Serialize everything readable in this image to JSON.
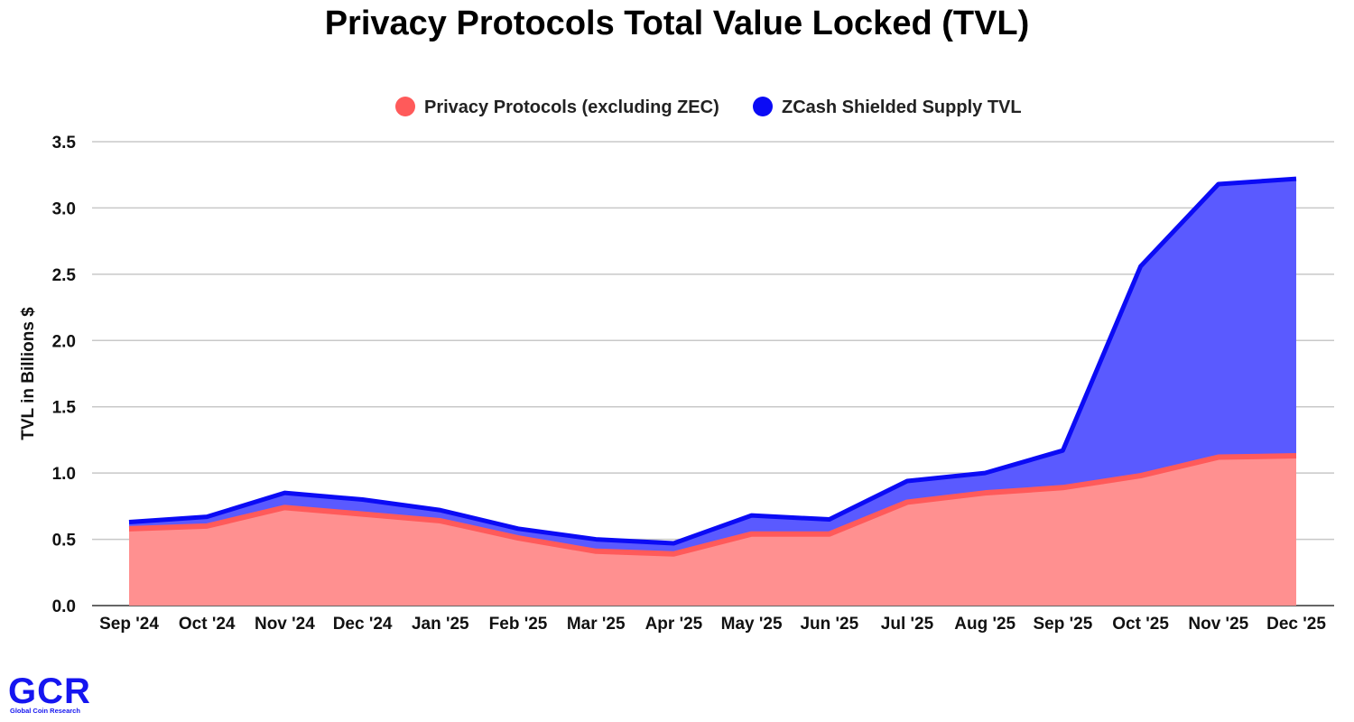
{
  "chart_data": {
    "type": "area",
    "stacked": true,
    "title": "Privacy Protocols Total Value Locked (TVL)",
    "xlabel": "",
    "ylabel": "TVL in Billions $",
    "ylim": [
      0,
      3.5
    ],
    "yticks": [
      0.0,
      0.5,
      1.0,
      1.5,
      2.0,
      2.5,
      3.0,
      3.5
    ],
    "ytick_labels": [
      "0.0",
      "0.5",
      "1.0",
      "1.5",
      "2.0",
      "2.5",
      "3.0",
      "3.5"
    ],
    "grid": true,
    "legend_position": "top-center",
    "categories": [
      "Sep '24",
      "Oct '24",
      "Nov '24",
      "Dec '24",
      "Jan '25",
      "Feb '25",
      "Mar '25",
      "Apr '25",
      "May '25",
      "Jun '25",
      "Jul '25",
      "Aug '25",
      "Sep '25",
      "Oct '25",
      "Nov '25",
      "Dec '25"
    ],
    "series": [
      {
        "name": "Privacy Protocols (excluding ZEC)",
        "color": "#ff5a5a",
        "fill": "#ff9090",
        "values": [
          0.58,
          0.6,
          0.74,
          0.69,
          0.64,
          0.51,
          0.41,
          0.39,
          0.54,
          0.54,
          0.78,
          0.85,
          0.89,
          0.98,
          1.12,
          1.13
        ]
      },
      {
        "name": "ZCash Shielded Supply TVL",
        "color": "#0b0bf5",
        "fill": "#5a5aff",
        "values": [
          0.05,
          0.07,
          0.11,
          0.11,
          0.08,
          0.07,
          0.09,
          0.08,
          0.14,
          0.11,
          0.16,
          0.15,
          0.28,
          1.58,
          2.06,
          2.09
        ]
      }
    ]
  },
  "logo": {
    "mark": "GCR",
    "subtitle": "Global Coin Research",
    "color": "#1515f0"
  }
}
